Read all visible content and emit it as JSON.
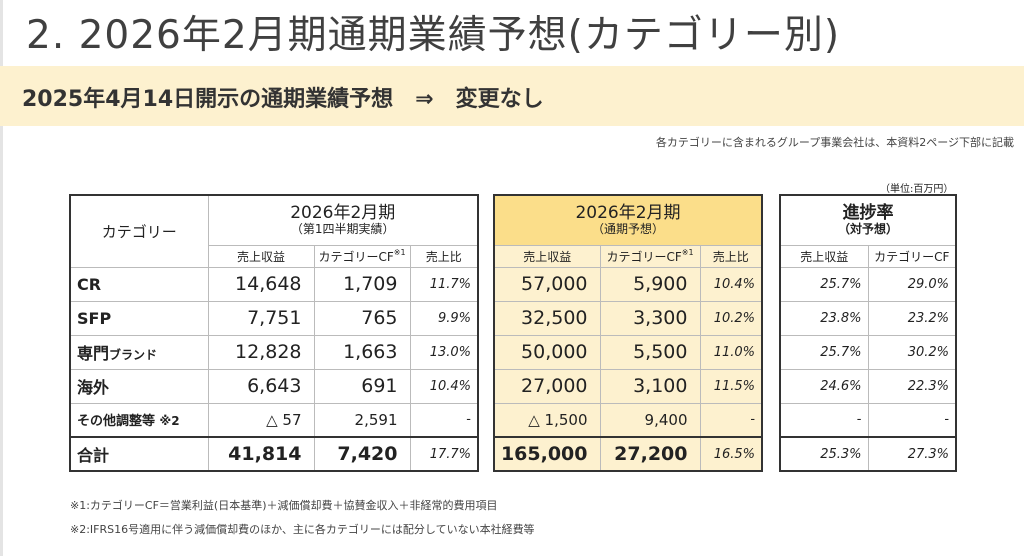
{
  "title": "2. 2026年2月期通期業績予想(カテゴリー別)",
  "banner": "2025年4月14日開示の通期業績予想　⇒　変更なし",
  "note_right": "各カテゴリーに含まれるグループ事業会社は、本資料2ページ下部に記載",
  "unit": "（単位:百万円）",
  "table1": {
    "category_header": "カテゴリー",
    "period": "2026年2月期",
    "period_sub": "（第1四半期実績）",
    "col_revenue": "売上収益",
    "col_cf": "カテゴリーCF",
    "col_cf_mark": "※1",
    "col_ratio": "売上比",
    "rows": [
      {
        "category": "CR",
        "revenue": "14,648",
        "cf": "1,709",
        "ratio": "11.7%"
      },
      {
        "category": "SFP",
        "revenue": "7,751",
        "cf": "765",
        "ratio": "9.9%"
      },
      {
        "category": "専門",
        "category_small": "ブランド",
        "revenue": "12,828",
        "cf": "1,663",
        "ratio": "13.0%"
      },
      {
        "category": "海外",
        "revenue": "6,643",
        "cf": "691",
        "ratio": "10.4%"
      },
      {
        "category": "その他調整等",
        "category_small": "※2",
        "revenue": "△ 57",
        "cf": "2,591",
        "ratio": "-"
      },
      {
        "category": "合計",
        "revenue": "41,814",
        "cf": "7,420",
        "ratio": "17.7%"
      }
    ]
  },
  "table2": {
    "period": "2026年2月期",
    "period_sub": "（通期予想）",
    "col_revenue": "売上収益",
    "col_cf": "カテゴリーCF",
    "col_cf_mark": "※1",
    "col_ratio": "売上比",
    "rows": [
      {
        "revenue": "57,000",
        "cf": "5,900",
        "ratio": "10.4%"
      },
      {
        "revenue": "32,500",
        "cf": "3,300",
        "ratio": "10.2%"
      },
      {
        "revenue": "50,000",
        "cf": "5,500",
        "ratio": "11.0%"
      },
      {
        "revenue": "27,000",
        "cf": "3,100",
        "ratio": "11.5%"
      },
      {
        "revenue": "△ 1,500",
        "cf": "9,400",
        "ratio": "-"
      },
      {
        "revenue": "165,000",
        "cf": "27,200",
        "ratio": "16.5%"
      }
    ]
  },
  "table3": {
    "title": "進捗率",
    "title_sub": "（対予想）",
    "col_revenue": "売上収益",
    "col_cf": "カテゴリーCF",
    "rows": [
      {
        "revenue": "25.7%",
        "cf": "29.0%"
      },
      {
        "revenue": "23.8%",
        "cf": "23.2%"
      },
      {
        "revenue": "25.7%",
        "cf": "30.2%"
      },
      {
        "revenue": "24.6%",
        "cf": "22.3%"
      },
      {
        "revenue": "-",
        "cf": "-"
      },
      {
        "revenue": "25.3%",
        "cf": "27.3%"
      }
    ]
  },
  "footnotes": [
    "※1:カテゴリーCF＝営業利益(日本基準)＋減価償却費＋協賛金収入＋非経常的費用項目",
    "※2:IFRS16号適用に伴う減価償却費のほか、主に各カテゴリーには配分していない本社経費等"
  ]
}
